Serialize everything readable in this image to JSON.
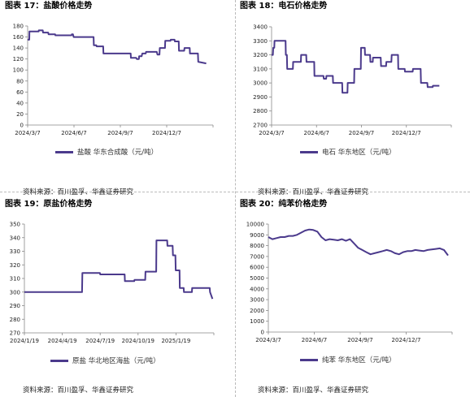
{
  "page": {
    "source_label": "资料来源：百川盈孚、华鑫证券研究"
  },
  "colors": {
    "line": "#4b3a8c",
    "axis": "#888888"
  },
  "chart_data": [
    {
      "type": "line",
      "title": "图表 17：盐酸价格走势",
      "legend": "盐酸 华东合成酸（元/吨）",
      "ylim": [
        0,
        180
      ],
      "yticks": [
        0,
        20,
        40,
        60,
        80,
        100,
        120,
        140,
        160,
        180
      ],
      "xticks": [
        "2024/3/7",
        "2024/6/7",
        "2024/9/7",
        "2024/12/7"
      ],
      "xdomain": [
        0,
        13.5
      ],
      "x": [
        0,
        0.12,
        0.13,
        0.8,
        0.81,
        1.1,
        1.12,
        1.5,
        1.52,
        2.0,
        2.02,
        3.0,
        3.02,
        3.2,
        3.22,
        3.3,
        3.35,
        4.8,
        4.82,
        5.0,
        5.02,
        5.5,
        5.52,
        7.5,
        7.52,
        7.9,
        7.95,
        8.1,
        8.12,
        8.3,
        8.35,
        8.6,
        8.62,
        9.4,
        9.45,
        9.6,
        9.62,
        10.0,
        10.02,
        10.4,
        10.42,
        10.7,
        10.72,
        11.0,
        11.02,
        11.4,
        11.42,
        11.8,
        11.82,
        12.4,
        12.42,
        13.0
      ],
      "values": [
        155,
        155,
        170,
        170,
        172,
        172,
        168,
        168,
        165,
        165,
        163,
        163,
        163,
        163,
        165,
        165,
        160,
        160,
        145,
        145,
        143,
        143,
        130,
        130,
        122,
        122,
        120,
        120,
        125,
        125,
        130,
        130,
        133,
        133,
        128,
        128,
        140,
        140,
        153,
        153,
        155,
        155,
        152,
        152,
        135,
        135,
        140,
        140,
        130,
        130,
        115,
        112
      ]
    },
    {
      "type": "line",
      "title": "图表 18：电石价格走势",
      "legend": "电石 华东地区（元/吨）",
      "ylim": [
        2700,
        3400
      ],
      "yticks": [
        2700,
        2800,
        2900,
        3000,
        3100,
        3200,
        3300,
        3400
      ],
      "xticks": [
        "2024/3/7",
        "2024/6/7",
        "2024/9/7",
        "2024/12/7"
      ],
      "xdomain": [
        0,
        13.5
      ],
      "x": [
        0,
        0.1,
        0.12,
        0.2,
        0.22,
        1.05,
        1.07,
        1.15,
        1.17,
        1.6,
        1.62,
        2.2,
        2.22,
        2.6,
        2.62,
        3.2,
        3.22,
        3.9,
        3.92,
        4.1,
        4.12,
        4.6,
        4.62,
        5.3,
        5.32,
        5.7,
        5.72,
        6.2,
        6.22,
        6.7,
        6.72,
        7.0,
        7.02,
        7.4,
        7.42,
        7.6,
        7.62,
        8.2,
        8.22,
        8.6,
        8.62,
        9.0,
        9.02,
        9.5,
        9.52,
        10.0,
        10.02,
        10.6,
        10.62,
        11.2,
        11.22,
        11.7,
        11.72,
        12.1,
        12.12,
        12.6
      ],
      "values": [
        3200,
        3200,
        3250,
        3250,
        3300,
        3300,
        3200,
        3200,
        3100,
        3100,
        3150,
        3150,
        3200,
        3200,
        3150,
        3150,
        3050,
        3050,
        3030,
        3030,
        3050,
        3050,
        3000,
        3000,
        2930,
        2930,
        3000,
        3000,
        3100,
        3100,
        3250,
        3250,
        3200,
        3200,
        3150,
        3150,
        3180,
        3180,
        3120,
        3120,
        3150,
        3150,
        3200,
        3200,
        3100,
        3100,
        3080,
        3080,
        3100,
        3100,
        3000,
        3000,
        2970,
        2970,
        2980,
        2980
      ]
    },
    {
      "type": "line",
      "title": "图表 19：原盐价格走势",
      "legend": "原盐 华北地区海盐（元/吨）",
      "ylim": [
        270,
        350
      ],
      "yticks": [
        270,
        280,
        290,
        300,
        310,
        320,
        330,
        340,
        350
      ],
      "xticks": [
        "2024/1/19",
        "2024/4/19",
        "2024/7/19",
        "2024/10/19",
        "2025/1/19"
      ],
      "xdomain": [
        0,
        13.8
      ],
      "x": [
        0,
        4.2,
        4.22,
        5.5,
        5.52,
        7.3,
        7.32,
        8.0,
        8.02,
        8.8,
        8.82,
        9.6,
        9.62,
        10.4,
        10.42,
        10.8,
        10.82,
        11.0,
        11.02,
        11.3,
        11.32,
        11.6,
        11.62,
        12.2,
        12.22,
        13.5,
        13.52,
        13.7
      ],
      "values": [
        300,
        300,
        314,
        314,
        313,
        313,
        308,
        308,
        309,
        309,
        315,
        315,
        338,
        338,
        334,
        334,
        327,
        327,
        316,
        316,
        303,
        303,
        300,
        300,
        303,
        303,
        300,
        295
      ]
    },
    {
      "type": "line",
      "title": "图表 20：纯苯价格走势",
      "legend": "纯苯 华东地区（元/吨）",
      "ylim": [
        0,
        10000
      ],
      "yticks": [
        0,
        1000,
        2000,
        3000,
        4000,
        5000,
        6000,
        7000,
        8000,
        9000,
        10000
      ],
      "xticks": [
        "2024/3/7",
        "2024/6/7",
        "2024/9/7",
        "2024/12/7"
      ],
      "xdomain": [
        0,
        13.5
      ],
      "x": [
        0,
        0.3,
        0.6,
        0.9,
        1.2,
        1.5,
        1.8,
        2.1,
        2.4,
        2.7,
        3.0,
        3.3,
        3.6,
        3.9,
        4.2,
        4.5,
        4.8,
        5.1,
        5.4,
        5.7,
        6.0,
        6.3,
        6.6,
        6.9,
        7.2,
        7.5,
        7.8,
        8.1,
        8.4,
        8.7,
        9.0,
        9.3,
        9.6,
        9.9,
        10.2,
        10.5,
        10.8,
        11.1,
        11.4,
        11.7,
        12.0,
        12.3,
        12.6,
        12.9,
        13.2
      ],
      "values": [
        8800,
        8600,
        8700,
        8800,
        8800,
        8900,
        8900,
        9000,
        9200,
        9400,
        9500,
        9450,
        9300,
        8800,
        8500,
        8600,
        8550,
        8500,
        8600,
        8450,
        8600,
        8200,
        7800,
        7600,
        7400,
        7200,
        7300,
        7400,
        7500,
        7600,
        7500,
        7300,
        7200,
        7400,
        7500,
        7500,
        7600,
        7550,
        7500,
        7600,
        7650,
        7700,
        7750,
        7600,
        7100
      ]
    }
  ]
}
